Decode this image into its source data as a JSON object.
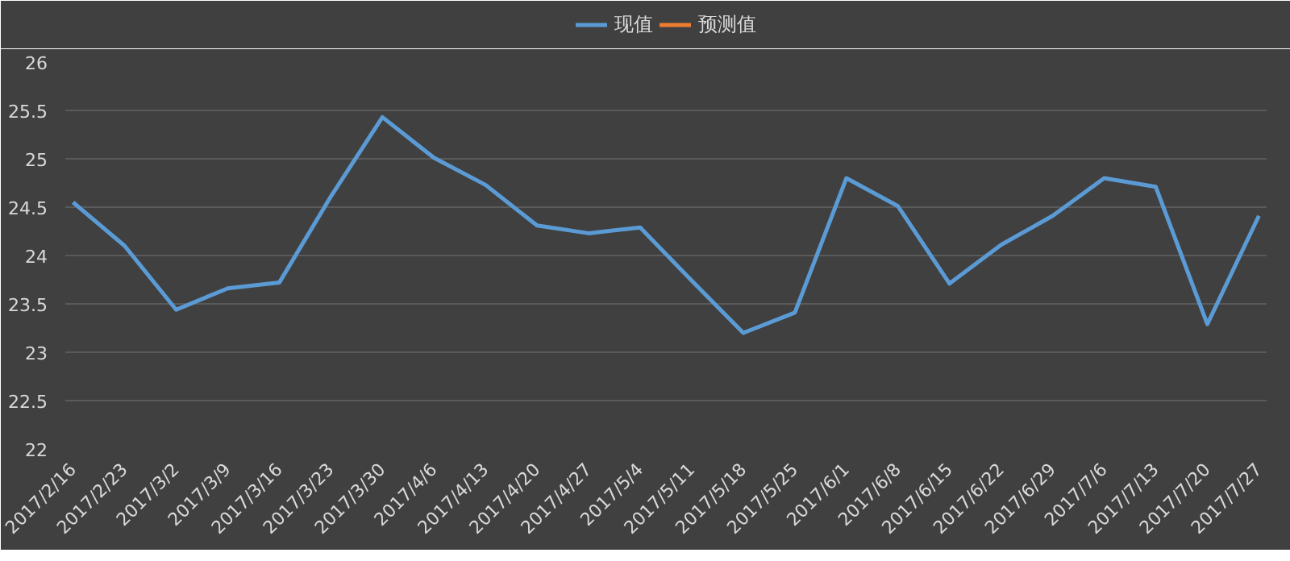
{
  "chart_data": {
    "type": "line",
    "categories": [
      "2017/2/16",
      "2017/2/23",
      "2017/3/2",
      "2017/3/9",
      "2017/3/16",
      "2017/3/23",
      "2017/3/30",
      "2017/4/6",
      "2017/4/13",
      "2017/4/20",
      "2017/4/27",
      "2017/5/4",
      "2017/5/11",
      "2017/5/18",
      "2017/5/25",
      "2017/6/1",
      "2017/6/8",
      "2017/6/15",
      "2017/6/22",
      "2017/6/29",
      "2017/7/6",
      "2017/7/13",
      "2017/7/20",
      "2017/7/27"
    ],
    "series": [
      {
        "name": "现值",
        "color": "#5b9bd5",
        "values": [
          24.55,
          24.1,
          23.44,
          23.66,
          23.72,
          24.61,
          25.43,
          25.01,
          24.73,
          24.31,
          24.23,
          24.29,
          23.74,
          23.2,
          23.41,
          24.8,
          24.51,
          23.71,
          24.11,
          24.41,
          24.8,
          24.71,
          23.29,
          24.41
        ]
      },
      {
        "name": "预测值",
        "color": "#ed7d31",
        "values": [
          null,
          null,
          null,
          null,
          null,
          null,
          null,
          null,
          null,
          null,
          null,
          null,
          null,
          null,
          null,
          null,
          null,
          null,
          null,
          null,
          null,
          null,
          null,
          null
        ]
      }
    ],
    "ylim": [
      22,
      26
    ],
    "yticks": [
      22,
      22.5,
      23,
      23.5,
      24,
      24.5,
      25,
      25.5,
      26
    ],
    "grid": "y",
    "legend": "top",
    "marker": "none",
    "line_style": "solid"
  }
}
